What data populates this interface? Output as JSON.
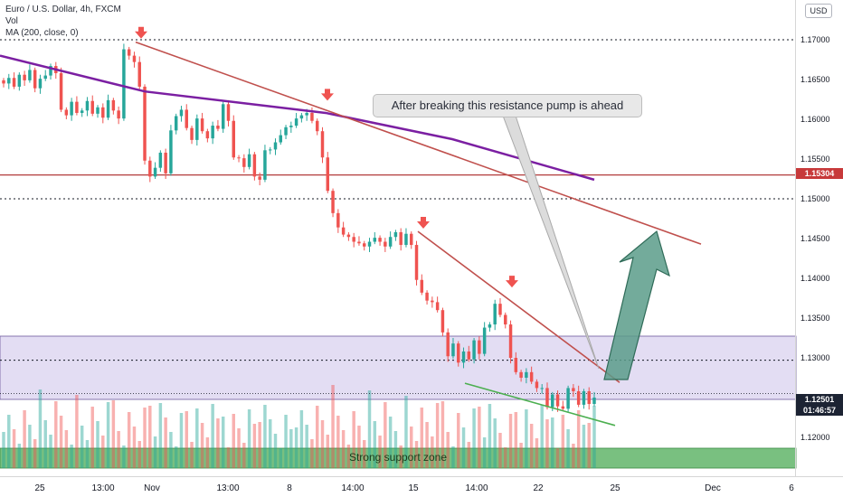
{
  "legend": {
    "symbol": "Euro / U.S. Dollar, 4h, FXCM",
    "volume": "Vol",
    "ma": "MA (200, close, 0)"
  },
  "currency_button": "USD",
  "annotation_text": "After breaking this resistance pump is ahead",
  "support_zone_label": "Strong support zone",
  "price_tags": {
    "level_1": "1.15304",
    "current_price": "1.12501",
    "countdown": "01:46:57"
  },
  "colors": {
    "bull_candle": "#26a69a",
    "bear_candle": "#ef5350",
    "ma_line": "#7b1fa2",
    "trendline": "#c0504d",
    "support_line": "#4caf50",
    "range_zone": "#d1c4e9",
    "support_zone": "#66bb6a",
    "arrow_fill": "#5b9c8a",
    "marker_arrow": "#ef5350"
  },
  "chart_data": {
    "type": "candlestick",
    "title": "Euro / U.S. Dollar, 4h, FXCM",
    "y_axis": {
      "ticks": [
        "1.17000",
        "1.16500",
        "1.16000",
        "1.15500",
        "1.15000",
        "1.14500",
        "1.14000",
        "1.13500",
        "1.13000",
        "1.12500",
        "1.12000"
      ],
      "range": [
        1.1155,
        1.176
      ]
    },
    "x_axis": {
      "ticks": [
        "25",
        "13:00",
        "Nov",
        "13:00",
        "8",
        "14:00",
        "15",
        "14:00",
        "22",
        "25",
        "Dec",
        "6"
      ]
    },
    "closes": [
      1.1645,
      1.1652,
      1.1641,
      1.1656,
      1.1649,
      1.1662,
      1.1639,
      1.1651,
      1.1655,
      1.1667,
      1.1658,
      1.1612,
      1.1605,
      1.1622,
      1.1608,
      1.1611,
      1.1623,
      1.1607,
      1.1615,
      1.1602,
      1.1624,
      1.1611,
      1.1601,
      1.1688,
      1.168,
      1.1672,
      1.1641,
      1.1548,
      1.1528,
      1.1539,
      1.1558,
      1.1532,
      1.1586,
      1.1604,
      1.1612,
      1.1589,
      1.1574,
      1.1601,
      1.1585,
      1.1576,
      1.1592,
      1.1588,
      1.1619,
      1.1598,
      1.1552,
      1.1551,
      1.154,
      1.1556,
      1.1528,
      1.1524,
      1.1561,
      1.1562,
      1.1571,
      1.158,
      1.159,
      1.1592,
      1.1601,
      1.1605,
      1.1608,
      1.1598,
      1.1585,
      1.1552,
      1.151,
      1.1482,
      1.1464,
      1.1455,
      1.1452,
      1.1446,
      1.1444,
      1.144,
      1.1446,
      1.1451,
      1.1446,
      1.144,
      1.1452,
      1.1458,
      1.1442,
      1.1456,
      1.1442,
      1.1398,
      1.1382,
      1.1372,
      1.137,
      1.136,
      1.1332,
      1.1302,
      1.1318,
      1.1294,
      1.1308,
      1.1298,
      1.1322,
      1.1305,
      1.1338,
      1.1342,
      1.1368,
      1.1354,
      1.1342,
      1.13,
      1.1282,
      1.1275,
      1.1282,
      1.127,
      1.1262,
      1.1262,
      1.1238,
      1.1254,
      1.1239,
      1.1236,
      1.1262,
      1.1258,
      1.1241,
      1.1258,
      1.1242,
      1.125
    ],
    "ma_200": [
      [
        0,
        1.168
      ],
      [
        160,
        1.1635
      ],
      [
        360,
        1.1608
      ],
      [
        500,
        1.1575
      ],
      [
        657,
        1.1524
      ]
    ],
    "levels": [
      1.17,
      1.153,
      1.15,
      1.1297,
      1.1255
    ],
    "trendlines": [
      {
        "from": [
          150,
          1.1697
        ],
        "to": [
          775,
          1.1443
        ]
      },
      {
        "from": [
          462,
          1.1459
        ],
        "to": [
          685,
          1.1269
        ]
      },
      {
        "from": [
          514,
          1.1268
        ],
        "to": [
          680,
          1.1215
        ]
      }
    ],
    "zones": [
      {
        "name": "range",
        "from_price": 1.1255,
        "to_price": 1.1333
      },
      {
        "name": "Strong support zone",
        "from_price": 1.117,
        "to_price": 1.119
      }
    ],
    "down_markers": [
      1.1706,
      1.1628,
      1.1467,
      1.1393
    ],
    "grid": false,
    "legend_position": "top-left"
  }
}
